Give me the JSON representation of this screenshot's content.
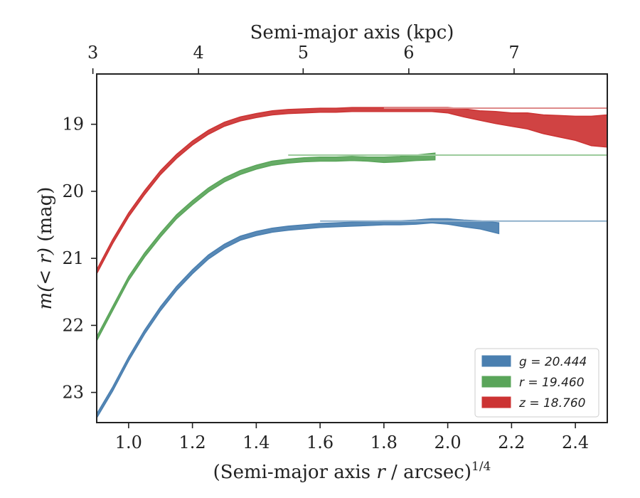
{
  "chart_data": {
    "type": "line",
    "xlabel_main": "(Semi-major axis ",
    "xlabel_var": "r",
    "xlabel_tail": " / arcsec)",
    "xlabel_exp": "1/4",
    "ylabel_var": "m(< r)",
    "ylabel_unit": " (mag)",
    "top_xlabel": "Semi-major axis (kpc)",
    "xlim": [
      0.9,
      2.5
    ],
    "ylim": [
      23.45,
      18.25
    ],
    "x_ticks": [
      "1.0",
      "1.2",
      "1.4",
      "1.6",
      "1.8",
      "2.0",
      "2.2",
      "2.4"
    ],
    "y_ticks": [
      "19",
      "20",
      "21",
      "22",
      "23"
    ],
    "top_ticks": [
      "3",
      "4",
      "5",
      "6",
      "7"
    ],
    "top_tick_positions": [
      0.888,
      1.219,
      1.547,
      1.878,
      2.208
    ],
    "legend_position": "lower-right",
    "series": [
      {
        "name": "g = 20.444",
        "color": "#4a7fb0",
        "model_asymptote": 20.444,
        "model_color": "#8fb0cc",
        "x": [
          0.9,
          0.95,
          1.0,
          1.05,
          1.1,
          1.15,
          1.2,
          1.25,
          1.3,
          1.35,
          1.4,
          1.45,
          1.5,
          1.55,
          1.6,
          1.65,
          1.7,
          1.75,
          1.8,
          1.85,
          1.9,
          1.95,
          2.0,
          2.05,
          2.1,
          2.16
        ],
        "y": [
          23.35,
          22.95,
          22.5,
          22.1,
          21.75,
          21.45,
          21.2,
          20.98,
          20.82,
          20.7,
          20.63,
          20.58,
          20.55,
          20.53,
          20.51,
          20.5,
          20.49,
          20.48,
          20.47,
          20.47,
          20.46,
          20.44,
          20.45,
          20.48,
          20.5,
          20.55
        ],
        "width": [
          0.03,
          0.03,
          0.03,
          0.03,
          0.03,
          0.03,
          0.03,
          0.03,
          0.03,
          0.03,
          0.03,
          0.03,
          0.03,
          0.03,
          0.03,
          0.03,
          0.03,
          0.03,
          0.03,
          0.03,
          0.03,
          0.03,
          0.04,
          0.05,
          0.06,
          0.08
        ]
      },
      {
        "name": "r = 19.460",
        "color": "#5aa55a",
        "model_asymptote": 19.46,
        "model_color": "#9ccb9c",
        "x": [
          0.9,
          0.95,
          1.0,
          1.05,
          1.1,
          1.15,
          1.2,
          1.25,
          1.3,
          1.35,
          1.4,
          1.45,
          1.5,
          1.55,
          1.6,
          1.65,
          1.7,
          1.75,
          1.8,
          1.85,
          1.9,
          1.96
        ],
        "y": [
          22.2,
          21.75,
          21.3,
          20.95,
          20.65,
          20.38,
          20.17,
          19.98,
          19.83,
          19.72,
          19.64,
          19.58,
          19.55,
          19.53,
          19.52,
          19.52,
          19.51,
          19.52,
          19.53,
          19.52,
          19.5,
          19.48
        ],
        "width": [
          0.03,
          0.03,
          0.03,
          0.03,
          0.03,
          0.03,
          0.03,
          0.03,
          0.03,
          0.03,
          0.03,
          0.03,
          0.03,
          0.03,
          0.03,
          0.03,
          0.03,
          0.03,
          0.04,
          0.04,
          0.04,
          0.05
        ]
      },
      {
        "name": "z = 18.760",
        "color": "#cc3333",
        "model_asymptote": 18.76,
        "model_color": "#de8a8a",
        "x": [
          0.9,
          0.95,
          1.0,
          1.05,
          1.1,
          1.15,
          1.2,
          1.25,
          1.3,
          1.35,
          1.4,
          1.45,
          1.5,
          1.55,
          1.6,
          1.65,
          1.7,
          1.75,
          1.8,
          1.85,
          1.9,
          1.95,
          2.0,
          2.05,
          2.1,
          2.15,
          2.2,
          2.25,
          2.3,
          2.35,
          2.4,
          2.45,
          2.5
        ],
        "y": [
          21.2,
          20.75,
          20.35,
          20.02,
          19.72,
          19.48,
          19.28,
          19.12,
          19.0,
          18.92,
          18.87,
          18.83,
          18.81,
          18.8,
          18.79,
          18.79,
          18.78,
          18.78,
          18.78,
          18.78,
          18.78,
          18.78,
          18.79,
          18.83,
          18.87,
          18.9,
          18.93,
          18.95,
          19.0,
          19.03,
          19.06,
          19.1,
          19.1
        ],
        "width": [
          0.03,
          0.03,
          0.03,
          0.03,
          0.03,
          0.03,
          0.03,
          0.03,
          0.03,
          0.03,
          0.03,
          0.03,
          0.03,
          0.03,
          0.03,
          0.03,
          0.03,
          0.03,
          0.03,
          0.03,
          0.03,
          0.03,
          0.04,
          0.06,
          0.07,
          0.09,
          0.1,
          0.12,
          0.14,
          0.16,
          0.18,
          0.22,
          0.24
        ]
      }
    ]
  }
}
